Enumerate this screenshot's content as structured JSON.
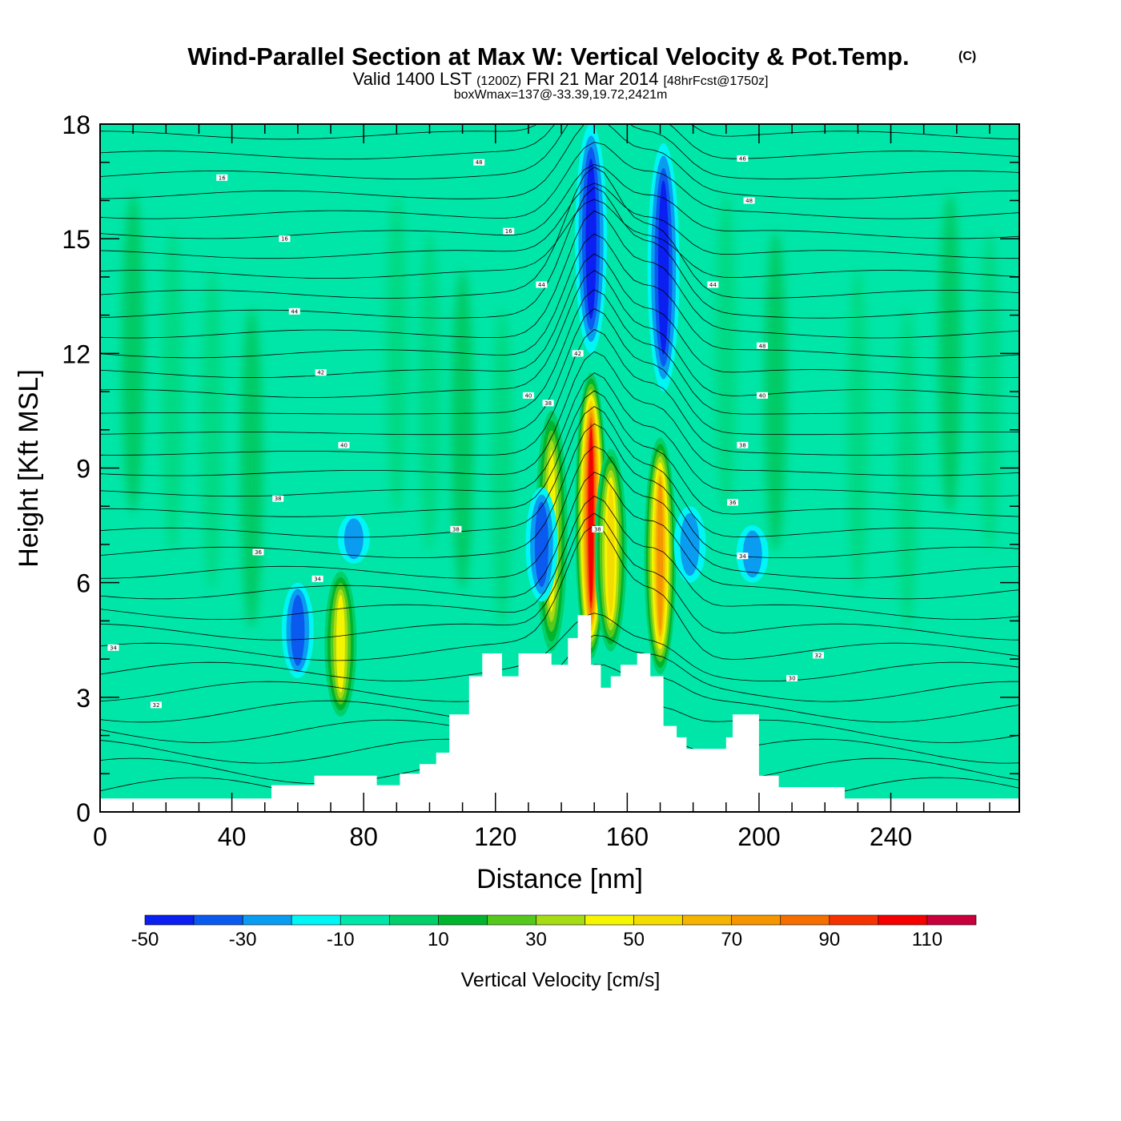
{
  "header": {
    "title": "Wind-Parallel Section at Max W: Vertical Velocity & Pot.Temp.",
    "copyright": "(C)",
    "valid_prefix": "Valid 1400 LST",
    "valid_utc": "(1200Z)",
    "valid_date": "FRI 21 Mar 2014",
    "forecast": "[48hrFcst@1750z]",
    "box_info": "boxWmax=137@-33.39,19.72,2421m"
  },
  "chart_data": {
    "type": "heatmap",
    "title": "Wind-Parallel Section at Max W: Vertical Velocity & Pot.Temp.",
    "xlabel": "Distance [nm]",
    "ylabel": "Height [Kft MSL]",
    "xlim": [
      0,
      279
    ],
    "ylim": [
      0,
      18
    ],
    "x_ticks": [
      0,
      40,
      80,
      120,
      160,
      200,
      240
    ],
    "y_ticks": [
      0,
      3,
      6,
      9,
      12,
      15,
      18
    ],
    "grid": false,
    "colorbar": {
      "title": "Vertical Velocity [cm/s]",
      "levels": [
        -50,
        -40,
        -30,
        -20,
        -10,
        0,
        10,
        20,
        30,
        40,
        50,
        60,
        70,
        80,
        90,
        100,
        110,
        120
      ],
      "labels": [
        -50,
        -30,
        -10,
        10,
        30,
        50,
        70,
        90,
        110
      ],
      "colors": [
        "#0a1ff0",
        "#0a5af0",
        "#0a9cf0",
        "#00f5f5",
        "#00e6a8",
        "#00d069",
        "#00b42d",
        "#55c81e",
        "#a5dc14",
        "#f5f500",
        "#f5dc00",
        "#f5b400",
        "#f59600",
        "#f56e00",
        "#f53200",
        "#f50000",
        "#c8003c"
      ],
      "placement": "bottom"
    },
    "background_color": "#00e6a8",
    "updraft_cores": [
      {
        "x": 73,
        "y_bottom": 2.5,
        "y_top": 6.3,
        "peak": 45
      },
      {
        "x": 137,
        "y_bottom": 4.2,
        "y_top": 10.5,
        "peak": 45
      },
      {
        "x": 149,
        "y_bottom": 4.0,
        "y_top": 11.5,
        "peak": 110
      },
      {
        "x": 155,
        "y_bottom": 4.2,
        "y_top": 9.5,
        "peak": 55
      },
      {
        "x": 170,
        "y_bottom": 3.6,
        "y_top": 9.8,
        "peak": 80
      }
    ],
    "downdraft_cores": [
      {
        "x": 60,
        "y_bottom": 3.5,
        "y_top": 6.0,
        "peak": -35
      },
      {
        "x": 77,
        "y_bottom": 6.5,
        "y_top": 7.8,
        "peak": -25
      },
      {
        "x": 134,
        "y_bottom": 5.5,
        "y_top": 8.5,
        "peak": -35
      },
      {
        "x": 149,
        "y_bottom": 12.0,
        "y_top": 18.0,
        "peak": -45
      },
      {
        "x": 171,
        "y_bottom": 11.0,
        "y_top": 17.5,
        "peak": -45
      },
      {
        "x": 179,
        "y_bottom": 6.0,
        "y_top": 8.0,
        "peak": -30
      },
      {
        "x": 198,
        "y_bottom": 6.0,
        "y_top": 7.5,
        "peak": -25
      }
    ],
    "terrain": [
      [
        0,
        0.35
      ],
      [
        52,
        0.35
      ],
      [
        52,
        0.7
      ],
      [
        65,
        0.7
      ],
      [
        65,
        0.95
      ],
      [
        84,
        0.95
      ],
      [
        84,
        0.7
      ],
      [
        91,
        0.7
      ],
      [
        91,
        1.0
      ],
      [
        97,
        1.0
      ],
      [
        97,
        1.25
      ],
      [
        102,
        1.25
      ],
      [
        102,
        1.55
      ],
      [
        106,
        1.55
      ],
      [
        106,
        2.55
      ],
      [
        112,
        2.55
      ],
      [
        112,
        3.55
      ],
      [
        116,
        3.55
      ],
      [
        116,
        4.15
      ],
      [
        122,
        4.15
      ],
      [
        122,
        3.55
      ],
      [
        127,
        3.55
      ],
      [
        127,
        4.15
      ],
      [
        137,
        4.15
      ],
      [
        137,
        3.85
      ],
      [
        142,
        3.85
      ],
      [
        142,
        4.55
      ],
      [
        145,
        4.55
      ],
      [
        145,
        5.15
      ],
      [
        149,
        5.15
      ],
      [
        149,
        3.85
      ],
      [
        152,
        3.85
      ],
      [
        152,
        3.25
      ],
      [
        155,
        3.25
      ],
      [
        155,
        3.55
      ],
      [
        158,
        3.55
      ],
      [
        158,
        3.85
      ],
      [
        163,
        3.85
      ],
      [
        163,
        4.15
      ],
      [
        167,
        4.15
      ],
      [
        167,
        3.55
      ],
      [
        171,
        3.55
      ],
      [
        171,
        2.25
      ],
      [
        175,
        2.25
      ],
      [
        175,
        1.95
      ],
      [
        178,
        1.95
      ],
      [
        178,
        1.65
      ],
      [
        190,
        1.65
      ],
      [
        190,
        1.95
      ],
      [
        192,
        1.95
      ],
      [
        192,
        2.55
      ],
      [
        200,
        2.55
      ],
      [
        200,
        0.95
      ],
      [
        206,
        0.95
      ],
      [
        206,
        0.65
      ],
      [
        226,
        0.65
      ],
      [
        226,
        0.35
      ],
      [
        279,
        0.35
      ]
    ],
    "isentropes": [
      {
        "label": "16",
        "anchor": [
          37,
          16.6
        ]
      },
      {
        "label": "48",
        "anchor": [
          115,
          17.0
        ]
      },
      {
        "label": "16",
        "anchor": [
          56,
          15.0
        ]
      },
      {
        "label": "44",
        "anchor": [
          59,
          13.1
        ]
      },
      {
        "label": "16",
        "anchor": [
          124,
          15.2
        ]
      },
      {
        "label": "44",
        "anchor": [
          134,
          13.8
        ]
      },
      {
        "label": "42",
        "anchor": [
          67,
          11.5
        ]
      },
      {
        "label": "42",
        "anchor": [
          145,
          12.0
        ]
      },
      {
        "label": "40",
        "anchor": [
          74,
          9.6
        ]
      },
      {
        "label": "40",
        "anchor": [
          130,
          10.9
        ]
      },
      {
        "label": "38",
        "anchor": [
          54,
          8.2
        ]
      },
      {
        "label": "38",
        "anchor": [
          108,
          7.4
        ]
      },
      {
        "label": "38",
        "anchor": [
          136,
          10.7
        ]
      },
      {
        "label": "38",
        "anchor": [
          151,
          7.4
        ]
      },
      {
        "label": "36",
        "anchor": [
          48,
          6.8
        ]
      },
      {
        "label": "34",
        "anchor": [
          66,
          6.1
        ]
      },
      {
        "label": "34",
        "anchor": [
          4,
          4.3
        ]
      },
      {
        "label": "32",
        "anchor": [
          17,
          2.8
        ]
      },
      {
        "label": "46",
        "anchor": [
          195,
          17.1
        ]
      },
      {
        "label": "48",
        "anchor": [
          197,
          16.0
        ]
      },
      {
        "label": "44",
        "anchor": [
          186,
          13.8
        ]
      },
      {
        "label": "48",
        "anchor": [
          201,
          12.2
        ]
      },
      {
        "label": "40",
        "anchor": [
          201,
          10.9
        ]
      },
      {
        "label": "38",
        "anchor": [
          195,
          9.6
        ]
      },
      {
        "label": "36",
        "anchor": [
          192,
          8.1
        ]
      },
      {
        "label": "34",
        "anchor": [
          195,
          6.7
        ]
      },
      {
        "label": "32",
        "anchor": [
          218,
          4.1
        ]
      },
      {
        "label": "30",
        "anchor": [
          210,
          3.5
        ]
      }
    ]
  }
}
